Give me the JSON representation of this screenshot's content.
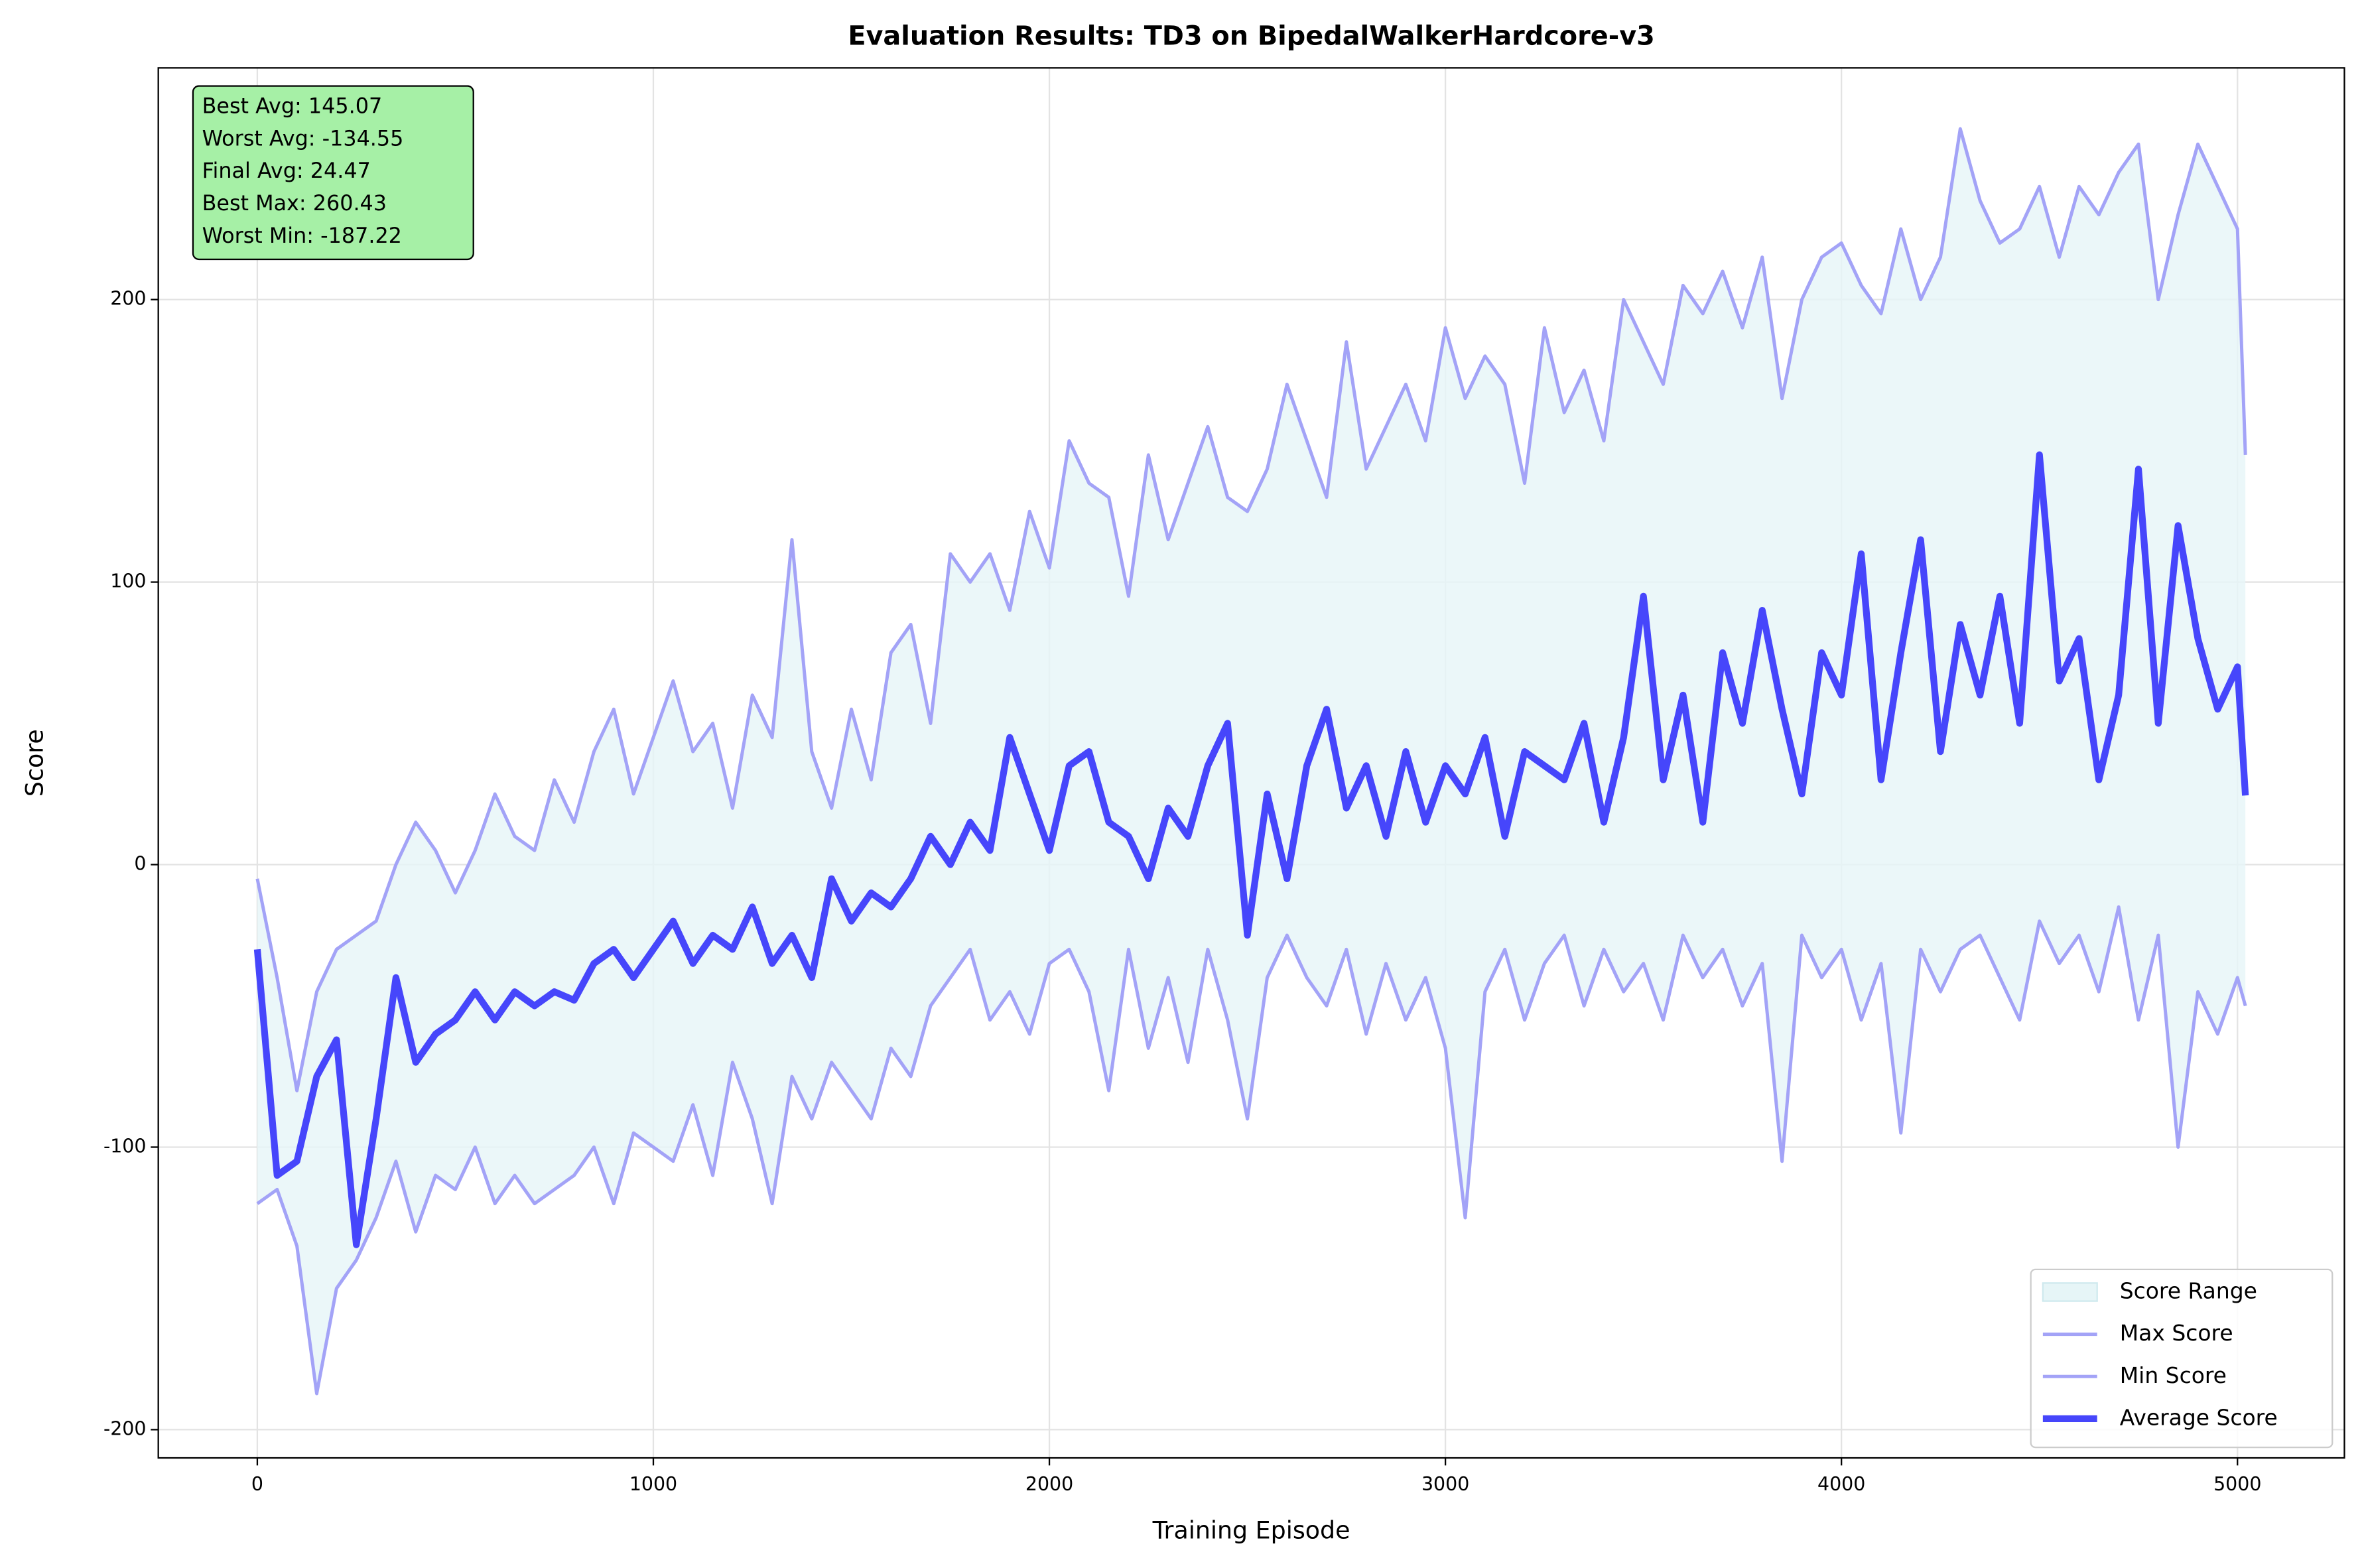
{
  "chart_data": {
    "type": "line",
    "title": "Evaluation Results: TD3 on BipedalWalkerHardcore-v3",
    "x_label": "Training Episode",
    "y_label": "Score",
    "xlim": [
      -250,
      5270
    ],
    "ylim": [
      -210,
      282
    ],
    "xticks": [
      0,
      1000,
      2000,
      3000,
      4000,
      5000
    ],
    "yticks": [
      -200,
      -100,
      0,
      100,
      200
    ],
    "grid": true,
    "legend": "lower right",
    "range_fill": {
      "name": "Score Range",
      "color": "#e6f5f7"
    },
    "annotations": [
      "Best Avg: 145.07",
      "Worst Avg: -134.55",
      "Final Avg: 24.47",
      "Best Max: 260.43",
      "Worst Min: -187.22"
    ],
    "x": [
      0,
      50,
      100,
      150,
      200,
      250,
      300,
      350,
      400,
      450,
      500,
      550,
      600,
      650,
      700,
      750,
      800,
      850,
      900,
      950,
      1000,
      1050,
      1100,
      1150,
      1200,
      1250,
      1300,
      1350,
      1400,
      1450,
      1500,
      1550,
      1600,
      1650,
      1700,
      1750,
      1800,
      1850,
      1900,
      1950,
      2000,
      2050,
      2100,
      2150,
      2200,
      2250,
      2300,
      2350,
      2400,
      2450,
      2500,
      2550,
      2600,
      2650,
      2700,
      2750,
      2800,
      2850,
      2900,
      2950,
      3000,
      3050,
      3100,
      3150,
      3200,
      3250,
      3300,
      3350,
      3400,
      3450,
      3500,
      3550,
      3600,
      3650,
      3700,
      3750,
      3800,
      3850,
      3900,
      3950,
      4000,
      4050,
      4100,
      4150,
      4200,
      4250,
      4300,
      4350,
      4400,
      4450,
      4500,
      4550,
      4600,
      4650,
      4700,
      4750,
      4800,
      4850,
      4900,
      4950,
      5000,
      5020
    ],
    "series": [
      {
        "name": "Max Score",
        "color": "#a3a3f7",
        "width": 2.2,
        "values": [
          -5,
          -40,
          -80,
          -45,
          -30,
          -25,
          -20,
          0,
          15,
          5,
          -10,
          5,
          25,
          10,
          5,
          30,
          15,
          40,
          55,
          25,
          45,
          65,
          40,
          50,
          20,
          60,
          45,
          115,
          40,
          20,
          55,
          30,
          75,
          85,
          50,
          110,
          100,
          110,
          90,
          125,
          105,
          150,
          135,
          130,
          95,
          145,
          115,
          135,
          155,
          130,
          125,
          140,
          170,
          150,
          130,
          185,
          140,
          155,
          170,
          150,
          190,
          165,
          180,
          170,
          135,
          190,
          160,
          175,
          150,
          200,
          185,
          170,
          205,
          195,
          210,
          190,
          215,
          165,
          200,
          215,
          220,
          205,
          195,
          225,
          200,
          215,
          260.43,
          235,
          220,
          225,
          240,
          215,
          240,
          230,
          245,
          255,
          200,
          230,
          255,
          240,
          225,
          145
        ]
      },
      {
        "name": "Min Score",
        "color": "#a3a3f7",
        "width": 2.2,
        "values": [
          -120,
          -115,
          -135,
          -187.22,
          -150,
          -140,
          -125,
          -105,
          -130,
          -110,
          -115,
          -100,
          -120,
          -110,
          -120,
          -115,
          -110,
          -100,
          -120,
          -95,
          -100,
          -105,
          -85,
          -110,
          -70,
          -90,
          -120,
          -75,
          -90,
          -70,
          -80,
          -90,
          -65,
          -75,
          -50,
          -40,
          -30,
          -55,
          -45,
          -60,
          -35,
          -30,
          -45,
          -80,
          -30,
          -65,
          -40,
          -70,
          -30,
          -55,
          -90,
          -40,
          -25,
          -40,
          -50,
          -30,
          -60,
          -35,
          -55,
          -40,
          -65,
          -125,
          -45,
          -30,
          -55,
          -35,
          -25,
          -50,
          -30,
          -45,
          -35,
          -55,
          -25,
          -40,
          -30,
          -50,
          -35,
          -105,
          -25,
          -40,
          -30,
          -55,
          -35,
          -95,
          -30,
          -45,
          -30,
          -25,
          -40,
          -55,
          -20,
          -35,
          -25,
          -45,
          -15,
          -55,
          -25,
          -100,
          -45,
          -60,
          -40,
          -50
        ]
      },
      {
        "name": "Average Score",
        "color": "#4646fb",
        "width": 4.5,
        "values": [
          -30,
          -110,
          -105,
          -75,
          -62,
          -134.55,
          -90,
          -40,
          -70,
          -60,
          -55,
          -45,
          -55,
          -45,
          -50,
          -45,
          -48,
          -35,
          -30,
          -40,
          -30,
          -20,
          -35,
          -25,
          -30,
          -15,
          -35,
          -25,
          -40,
          -5,
          -20,
          -10,
          -15,
          -5,
          10,
          0,
          15,
          5,
          45,
          25,
          5,
          35,
          40,
          15,
          10,
          -5,
          20,
          10,
          35,
          50,
          -25,
          25,
          -5,
          35,
          55,
          20,
          35,
          10,
          40,
          15,
          35,
          25,
          45,
          10,
          40,
          35,
          30,
          50,
          15,
          45,
          95,
          30,
          60,
          15,
          75,
          50,
          90,
          55,
          25,
          75,
          60,
          110,
          30,
          75,
          115,
          40,
          85,
          60,
          95,
          50,
          145.07,
          65,
          80,
          30,
          60,
          140,
          50,
          120,
          80,
          55,
          70,
          24.47
        ]
      }
    ]
  }
}
